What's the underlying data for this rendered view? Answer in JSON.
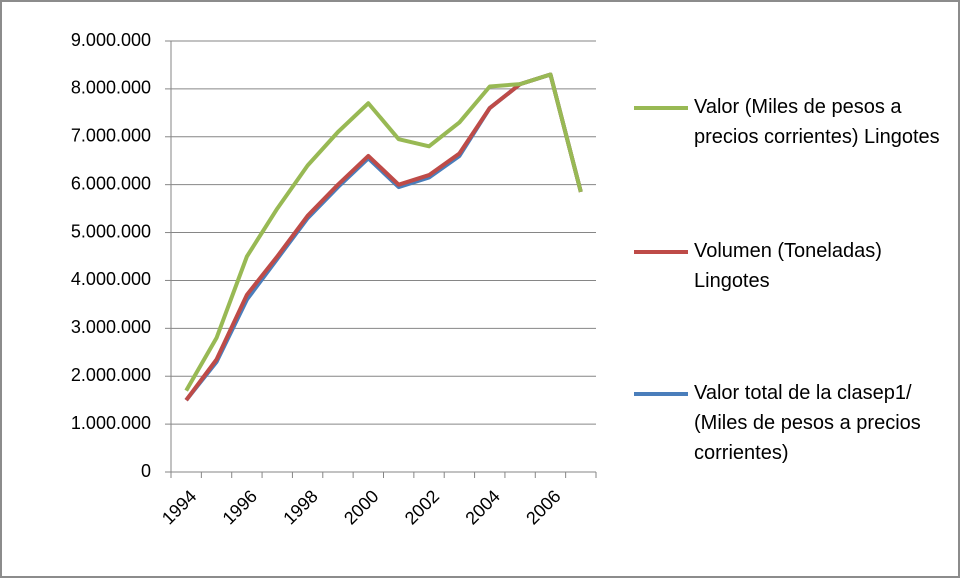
{
  "chart_data": {
    "type": "line",
    "categories": [
      "1994",
      null,
      "1996",
      null,
      "1998",
      null,
      "2000",
      null,
      "2002",
      null,
      "2004",
      null,
      "2006",
      null
    ],
    "series": [
      {
        "name": "Valor total de la clasep1/  (Miles de pesos a precios corrientes)",
        "color": "#4a7ebb",
        "values": [
          1500000,
          2300000,
          3600000,
          4450000,
          5300000,
          5950000,
          6550000,
          5950000,
          6150000,
          6600000,
          7600000,
          8100000,
          8300000,
          5850000
        ]
      },
      {
        "name": "Volumen (Toneladas) Lingotes",
        "color": "#be4b48",
        "values": [
          1500000,
          2350000,
          3700000,
          4500000,
          5350000,
          6000000,
          6600000,
          6000000,
          6200000,
          6650000,
          7600000,
          8100000,
          8300000,
          5850000
        ]
      },
      {
        "name": "Valor (Miles de pesos a precios corrientes) Lingotes",
        "color": "#98b954",
        "values": [
          1700000,
          2800000,
          4500000,
          5500000,
          6400000,
          7100000,
          7700000,
          6950000,
          6800000,
          7300000,
          8050000,
          8100000,
          8300000,
          5850000
        ]
      }
    ],
    "ylim": [
      0,
      9000000
    ],
    "yticks": [
      0,
      {
        "value": 1000000,
        "label": "1.000.000"
      },
      {
        "value": 2000000,
        "label": "2.000.000"
      },
      {
        "value": 3000000,
        "label": "3.000.000"
      },
      {
        "value": 4000000,
        "label": "4.000.000"
      },
      {
        "value": 5000000,
        "label": "5.000.000"
      },
      {
        "value": 6000000,
        "label": "6.000.000"
      },
      {
        "value": 7000000,
        "label": "7.000.000"
      },
      {
        "value": 8000000,
        "label": "8.000.000"
      },
      {
        "value": 9000000,
        "label": "9.000.000"
      }
    ],
    "grid": true
  }
}
